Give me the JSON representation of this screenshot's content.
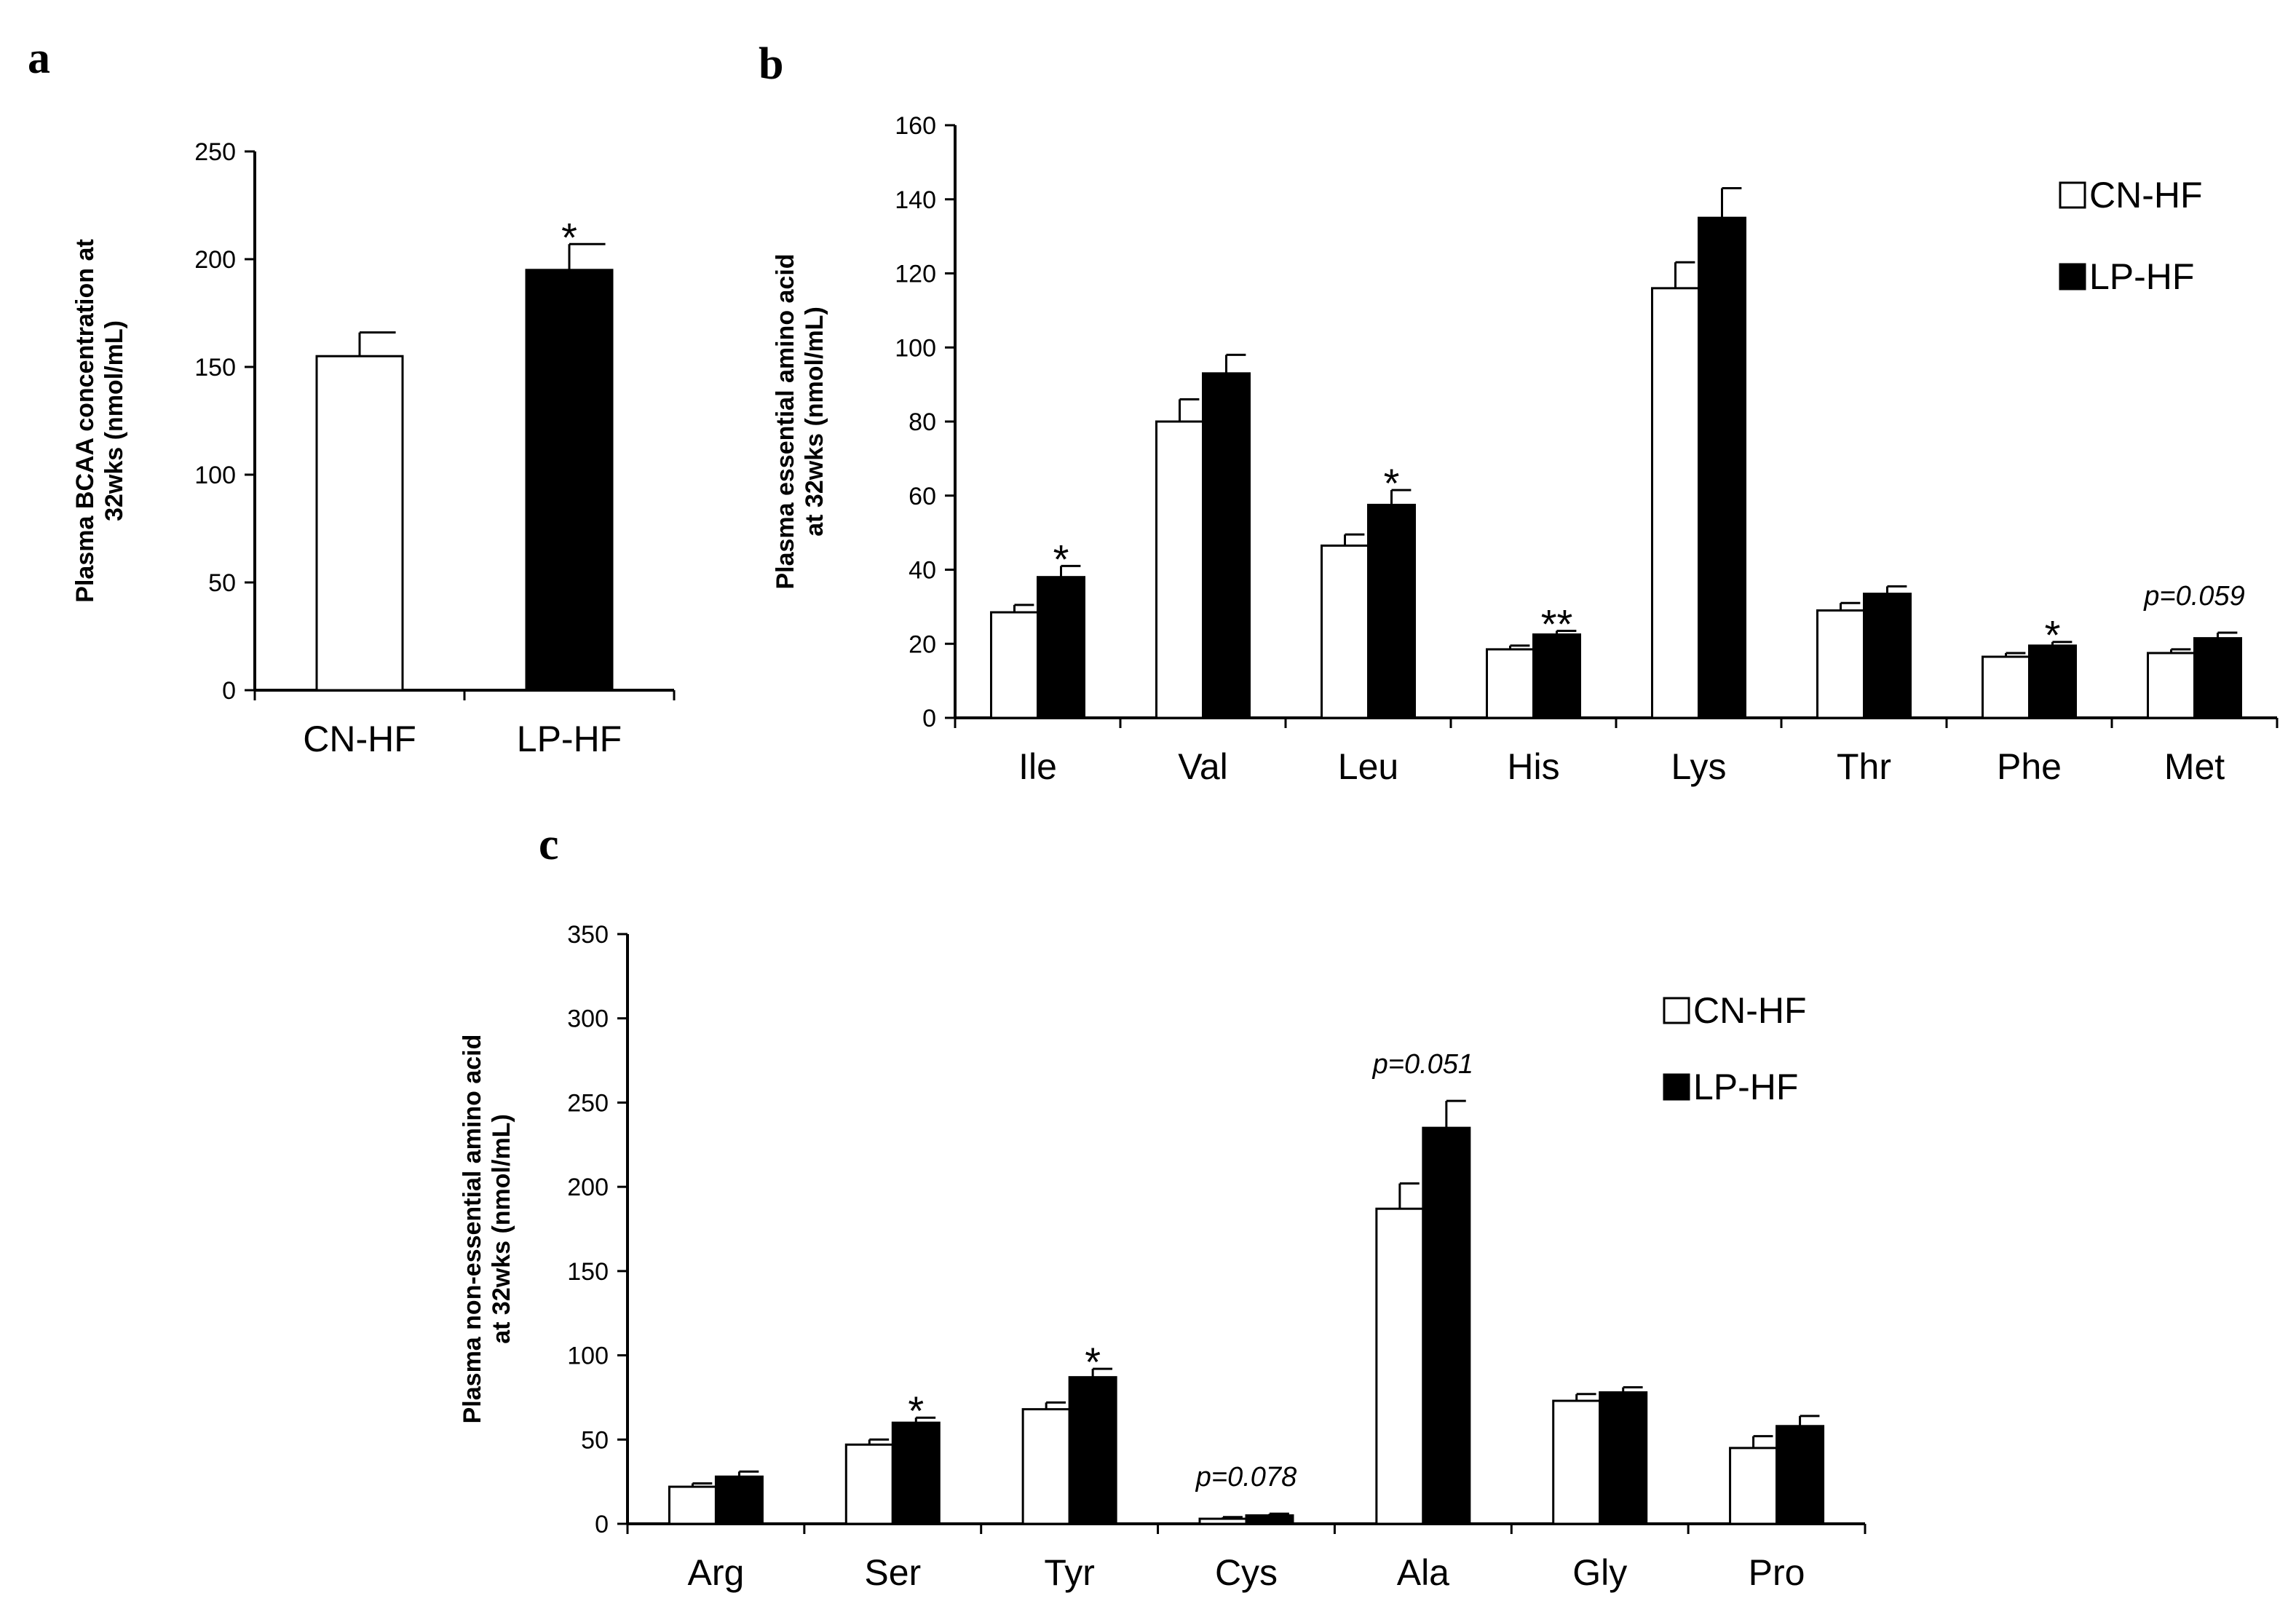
{
  "chart_data": [
    {
      "panel": "a",
      "type": "bar",
      "categories": [
        "CN-HF",
        "LP-HF"
      ],
      "values": [
        155,
        195
      ],
      "errors": [
        11,
        12
      ],
      "fills": [
        "#ffffff",
        "#000000"
      ],
      "ylabel": [
        "Plasma BCAA concentration at",
        "32wks (nmol/mL)"
      ],
      "ylim": [
        0,
        250
      ],
      "yticks": [
        0,
        50,
        100,
        150,
        200,
        250
      ],
      "annotations": [
        "",
        "*"
      ]
    },
    {
      "panel": "b",
      "type": "bar",
      "categories": [
        "Ile",
        "Val",
        "Leu",
        "His",
        "Lys",
        "Thr",
        "Phe",
        "Met"
      ],
      "series": [
        {
          "name": "CN-HF",
          "color": "#ffffff",
          "values": [
            28.5,
            80,
            46.5,
            18.5,
            116,
            29,
            16.5,
            17.5
          ],
          "errors": [
            2,
            6,
            3,
            1,
            7,
            2,
            1,
            1
          ]
        },
        {
          "name": "LP-HF",
          "color": "#000000",
          "values": [
            38,
            93,
            57.5,
            22.5,
            135,
            33.5,
            19.5,
            21.5
          ],
          "errors": [
            3,
            5,
            4,
            1,
            8,
            2,
            1,
            1.5
          ]
        }
      ],
      "ylabel": [
        "Plasma essential amino acid",
        "at 32wks (nmol/mL)"
      ],
      "ylim": [
        0,
        160
      ],
      "yticks": [
        0,
        20,
        40,
        60,
        80,
        100,
        120,
        140,
        160
      ],
      "annotations": [
        "*",
        "",
        "*",
        "**",
        "",
        "",
        "*",
        "p=0.059"
      ],
      "legend": [
        "CN-HF",
        "LP-HF"
      ],
      "legend_position": "top-right"
    },
    {
      "panel": "c",
      "type": "bar",
      "categories": [
        "Arg",
        "Ser",
        "Tyr",
        "Cys",
        "Ala",
        "Gly",
        "Pro"
      ],
      "series": [
        {
          "name": "CN-HF",
          "color": "#ffffff",
          "values": [
            22,
            47,
            68,
            3,
            187,
            73,
            45
          ],
          "errors": [
            2,
            3,
            4,
            1,
            15,
            4,
            7
          ]
        },
        {
          "name": "LP-HF",
          "color": "#000000",
          "values": [
            28,
            60,
            87,
            5,
            235,
            78,
            58
          ],
          "errors": [
            3,
            3,
            5,
            1,
            16,
            3,
            6
          ]
        }
      ],
      "ylabel": [
        "Plasma non-essential amino acid",
        "at 32wks (nmol/mL)"
      ],
      "ylim": [
        0,
        350
      ],
      "yticks": [
        0,
        50,
        100,
        150,
        200,
        250,
        300,
        350
      ],
      "annotations": [
        "",
        "*",
        "*",
        "p=0.078",
        "p=0.051",
        "",
        ""
      ],
      "legend": [
        "CN-HF",
        "LP-HF"
      ],
      "legend_position": "top-right"
    }
  ]
}
